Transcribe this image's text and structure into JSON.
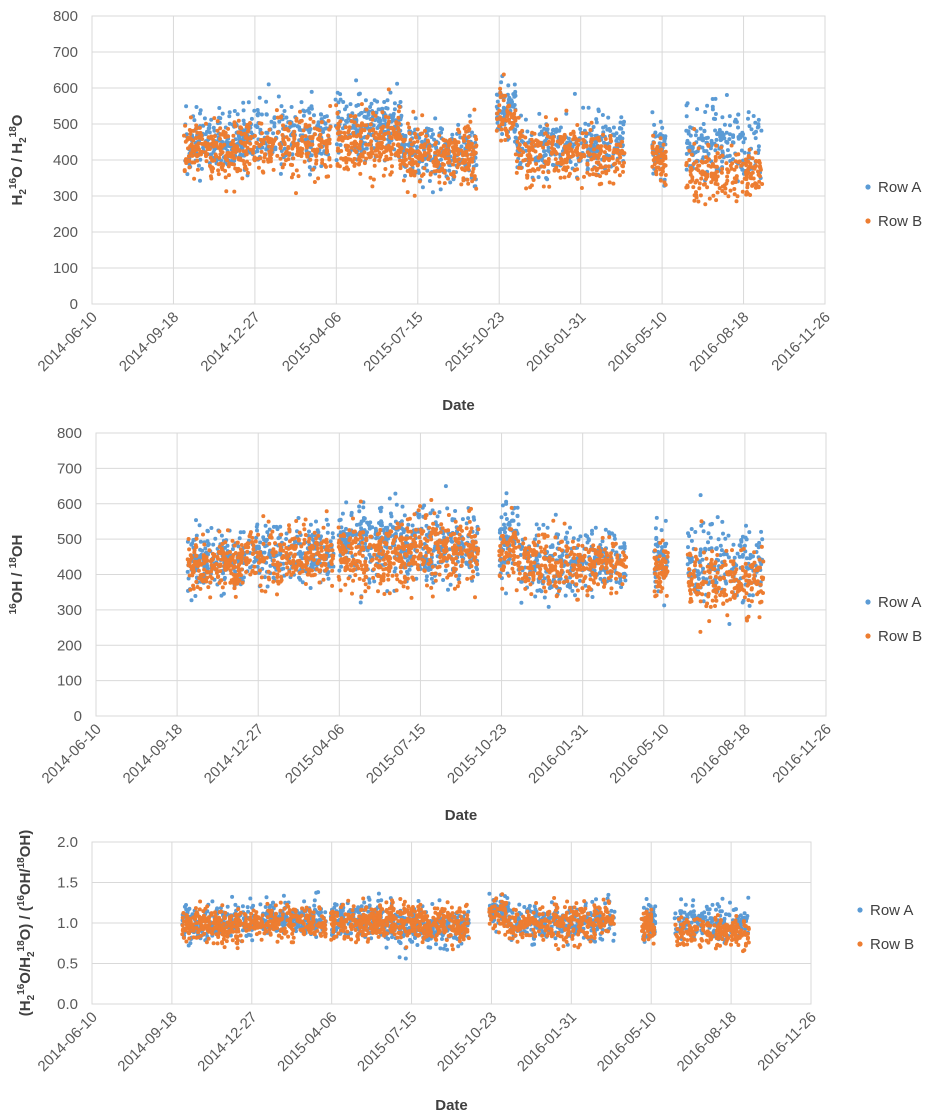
{
  "colors": {
    "row_a": "#5b9bd5",
    "row_b": "#ed7d31",
    "grid": "#d9d9d9",
    "text": "#595959"
  },
  "chart_data": [
    {
      "type": "scatter",
      "xlabel": "Date",
      "ylabel_parts": [
        {
          "t": "H",
          "s": ""
        },
        {
          "t": "2",
          "s": "sub"
        },
        {
          "t": "16",
          "s": "sup"
        },
        {
          "t": "O / H",
          "s": ""
        },
        {
          "t": "2",
          "s": "sub"
        },
        {
          "t": "18",
          "s": "sup"
        },
        {
          "t": "O",
          "s": ""
        }
      ],
      "x_ticks": [
        "2014-06-10",
        "2014-09-18",
        "2014-12-27",
        "2015-04-06",
        "2015-07-15",
        "2015-10-23",
        "2016-01-31",
        "2016-05-10",
        "2016-08-18",
        "2016-11-26"
      ],
      "y_ticks": [
        "0",
        "100",
        "200",
        "300",
        "400",
        "500",
        "600",
        "700",
        "800"
      ],
      "ylim": [
        0,
        800
      ],
      "series": [
        {
          "name": "Row A",
          "color_key": "row_a",
          "clusters": [
            {
              "start": "2014-10-01",
              "end": "2014-12-10",
              "center": 450,
              "spread": 55,
              "n": 170
            },
            {
              "start": "2014-12-10",
              "end": "2015-03-30",
              "center": 470,
              "spread": 60,
              "n": 230
            },
            {
              "start": "2015-04-05",
              "end": "2015-06-25",
              "center": 490,
              "spread": 60,
              "n": 220
            },
            {
              "start": "2015-06-25",
              "end": "2015-09-25",
              "center": 420,
              "spread": 55,
              "n": 220
            },
            {
              "start": "2015-10-20",
              "end": "2015-11-12",
              "center": 530,
              "spread": 55,
              "n": 80
            },
            {
              "start": "2015-11-12",
              "end": "2016-03-25",
              "center": 440,
              "spread": 55,
              "n": 260
            },
            {
              "start": "2016-04-28",
              "end": "2016-05-15",
              "center": 430,
              "spread": 50,
              "n": 50
            },
            {
              "start": "2016-06-08",
              "end": "2016-09-10",
              "center": 450,
              "spread": 65,
              "n": 180
            }
          ]
        },
        {
          "name": "Row B",
          "color_key": "row_b",
          "clusters": [
            {
              "start": "2014-10-01",
              "end": "2014-12-10",
              "center": 430,
              "spread": 50,
              "n": 200
            },
            {
              "start": "2014-12-10",
              "end": "2015-03-30",
              "center": 440,
              "spread": 55,
              "n": 250
            },
            {
              "start": "2015-04-05",
              "end": "2015-06-25",
              "center": 450,
              "spread": 60,
              "n": 240
            },
            {
              "start": "2015-06-25",
              "end": "2015-09-25",
              "center": 410,
              "spread": 55,
              "n": 260
            },
            {
              "start": "2015-10-20",
              "end": "2015-11-12",
              "center": 520,
              "spread": 45,
              "n": 60
            },
            {
              "start": "2015-11-12",
              "end": "2016-03-25",
              "center": 420,
              "spread": 50,
              "n": 300
            },
            {
              "start": "2016-04-28",
              "end": "2016-05-15",
              "center": 400,
              "spread": 45,
              "n": 60
            },
            {
              "start": "2016-06-08",
              "end": "2016-09-10",
              "center": 360,
              "spread": 50,
              "n": 200
            }
          ]
        }
      ]
    },
    {
      "type": "scatter",
      "xlabel": "Date",
      "ylabel_parts": [
        {
          "t": "16",
          "s": "sup"
        },
        {
          "t": "OH / ",
          "s": ""
        },
        {
          "t": "18",
          "s": "sup"
        },
        {
          "t": "OH",
          "s": ""
        }
      ],
      "x_ticks": [
        "2014-06-10",
        "2014-09-18",
        "2014-12-27",
        "2015-04-06",
        "2015-07-15",
        "2015-10-23",
        "2016-01-31",
        "2016-05-10",
        "2016-08-18",
        "2016-11-26"
      ],
      "y_ticks": [
        "0",
        "100",
        "200",
        "300",
        "400",
        "500",
        "600",
        "700",
        "800"
      ],
      "ylim": [
        0,
        800
      ],
      "series": [
        {
          "name": "Row A",
          "color_key": "row_a",
          "clusters": [
            {
              "start": "2014-10-01",
              "end": "2014-12-10",
              "center": 440,
              "spread": 55,
              "n": 170
            },
            {
              "start": "2014-12-10",
              "end": "2015-03-30",
              "center": 460,
              "spread": 55,
              "n": 230
            },
            {
              "start": "2015-04-05",
              "end": "2015-06-25",
              "center": 500,
              "spread": 70,
              "n": 220
            },
            {
              "start": "2015-06-25",
              "end": "2015-09-25",
              "center": 480,
              "spread": 70,
              "n": 230
            },
            {
              "start": "2015-10-20",
              "end": "2015-11-12",
              "center": 500,
              "spread": 70,
              "n": 80
            },
            {
              "start": "2015-11-12",
              "end": "2016-03-25",
              "center": 430,
              "spread": 60,
              "n": 280
            },
            {
              "start": "2016-04-28",
              "end": "2016-05-15",
              "center": 450,
              "spread": 65,
              "n": 50
            },
            {
              "start": "2016-06-08",
              "end": "2016-09-10",
              "center": 440,
              "spread": 80,
              "n": 180
            }
          ]
        },
        {
          "name": "Row B",
          "color_key": "row_b",
          "clusters": [
            {
              "start": "2014-10-01",
              "end": "2014-12-10",
              "center": 430,
              "spread": 50,
              "n": 200
            },
            {
              "start": "2014-12-10",
              "end": "2015-03-30",
              "center": 450,
              "spread": 55,
              "n": 250
            },
            {
              "start": "2015-04-05",
              "end": "2015-06-25",
              "center": 450,
              "spread": 60,
              "n": 240
            },
            {
              "start": "2015-06-25",
              "end": "2015-09-25",
              "center": 460,
              "spread": 65,
              "n": 260
            },
            {
              "start": "2015-10-20",
              "end": "2015-11-12",
              "center": 470,
              "spread": 55,
              "n": 60
            },
            {
              "start": "2015-11-12",
              "end": "2016-03-25",
              "center": 430,
              "spread": 55,
              "n": 300
            },
            {
              "start": "2016-04-28",
              "end": "2016-05-15",
              "center": 410,
              "spread": 50,
              "n": 60
            },
            {
              "start": "2016-06-08",
              "end": "2016-09-10",
              "center": 380,
              "spread": 60,
              "n": 200
            }
          ]
        }
      ]
    },
    {
      "type": "scatter",
      "xlabel": "Date",
      "ylabel_parts": [
        {
          "t": "(H",
          "s": ""
        },
        {
          "t": "2",
          "s": "sub"
        },
        {
          "t": "16",
          "s": "sup"
        },
        {
          "t": "O/H",
          "s": ""
        },
        {
          "t": "2",
          "s": "sub"
        },
        {
          "t": "18",
          "s": "sup"
        },
        {
          "t": "O) / (",
          "s": ""
        },
        {
          "t": "16",
          "s": "sup"
        },
        {
          "t": "OH/",
          "s": ""
        },
        {
          "t": "18",
          "s": "sup"
        },
        {
          "t": "OH)",
          "s": ""
        }
      ],
      "x_ticks": [
        "2014-06-10",
        "2014-09-18",
        "2014-12-27",
        "2015-04-06",
        "2015-07-15",
        "2015-10-23",
        "2016-01-31",
        "2016-05-10",
        "2016-08-18",
        "2016-11-26"
      ],
      "y_ticks": [
        "0.0",
        "0.5",
        "1.0",
        "1.5",
        "2.0"
      ],
      "ylim": [
        0,
        2
      ],
      "series": [
        {
          "name": "Row A",
          "color_key": "row_a",
          "clusters": [
            {
              "start": "2014-10-01",
              "end": "2014-12-10",
              "center": 1.0,
              "spread": 0.14,
              "n": 170
            },
            {
              "start": "2014-12-10",
              "end": "2015-03-30",
              "center": 1.05,
              "spread": 0.14,
              "n": 230
            },
            {
              "start": "2015-04-05",
              "end": "2015-06-25",
              "center": 1.05,
              "spread": 0.15,
              "n": 220
            },
            {
              "start": "2015-06-25",
              "end": "2015-09-25",
              "center": 0.95,
              "spread": 0.15,
              "n": 230
            },
            {
              "start": "2015-10-20",
              "end": "2015-11-12",
              "center": 1.15,
              "spread": 0.12,
              "n": 60
            },
            {
              "start": "2015-11-12",
              "end": "2016-03-25",
              "center": 1.0,
              "spread": 0.15,
              "n": 280
            },
            {
              "start": "2016-04-28",
              "end": "2016-05-15",
              "center": 0.98,
              "spread": 0.14,
              "n": 50
            },
            {
              "start": "2016-06-08",
              "end": "2016-09-10",
              "center": 1.0,
              "spread": 0.15,
              "n": 180
            }
          ]
        },
        {
          "name": "Row B",
          "color_key": "row_b",
          "clusters": [
            {
              "start": "2014-10-01",
              "end": "2014-12-10",
              "center": 0.98,
              "spread": 0.13,
              "n": 200
            },
            {
              "start": "2014-12-10",
              "end": "2015-03-30",
              "center": 1.0,
              "spread": 0.13,
              "n": 250
            },
            {
              "start": "2015-04-05",
              "end": "2015-06-25",
              "center": 1.0,
              "spread": 0.14,
              "n": 240
            },
            {
              "start": "2015-06-25",
              "end": "2015-09-25",
              "center": 1.0,
              "spread": 0.15,
              "n": 260
            },
            {
              "start": "2015-10-20",
              "end": "2015-11-12",
              "center": 1.1,
              "spread": 0.12,
              "n": 50
            },
            {
              "start": "2015-11-12",
              "end": "2016-03-25",
              "center": 1.0,
              "spread": 0.15,
              "n": 300
            },
            {
              "start": "2016-04-28",
              "end": "2016-05-15",
              "center": 0.95,
              "spread": 0.13,
              "n": 60
            },
            {
              "start": "2016-06-08",
              "end": "2016-09-10",
              "center": 0.9,
              "spread": 0.12,
              "n": 200
            }
          ]
        }
      ]
    }
  ]
}
